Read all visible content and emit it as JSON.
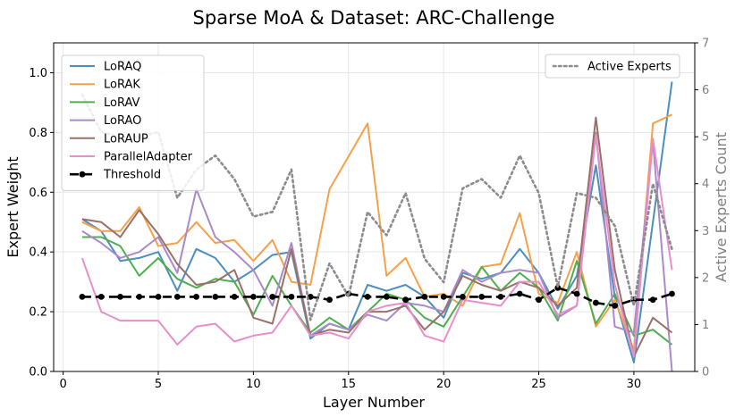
{
  "chart_data": {
    "type": "line",
    "title": "Sparse MoA & Dataset: ARC-Challenge",
    "xlabel": "Layer Number",
    "ylabel": "Expert Weight",
    "y2label": "Active Experts Count",
    "xlim": [
      -0.5,
      33.2
    ],
    "ylim": [
      0.0,
      1.1
    ],
    "y2lim": [
      0,
      7
    ],
    "xticks": [
      0,
      5,
      10,
      15,
      20,
      25,
      30
    ],
    "yticks": [
      0.0,
      0.2,
      0.4,
      0.6,
      0.8,
      1.0
    ],
    "y2ticks": [
      0,
      1,
      2,
      3,
      4,
      5,
      6,
      7
    ],
    "grid": true,
    "legend_main_position": "top-left",
    "legend_secondary_position": "top-right",
    "x": [
      1,
      2,
      3,
      4,
      5,
      6,
      7,
      8,
      9,
      10,
      11,
      12,
      13,
      14,
      15,
      16,
      17,
      18,
      19,
      20,
      21,
      22,
      23,
      24,
      25,
      26,
      27,
      28,
      29,
      30,
      31,
      32
    ],
    "series": [
      {
        "name": "LoRAQ",
        "color": "#4c8fbe",
        "style": "solid",
        "axis": "left",
        "values": [
          0.51,
          0.47,
          0.37,
          0.38,
          0.4,
          0.27,
          0.41,
          0.38,
          0.3,
          0.34,
          0.39,
          0.4,
          0.11,
          0.16,
          0.14,
          0.29,
          0.27,
          0.29,
          0.25,
          0.18,
          0.33,
          0.31,
          0.33,
          0.41,
          0.33,
          0.21,
          0.32,
          0.69,
          0.25,
          0.03,
          0.5,
          0.97
        ]
      },
      {
        "name": "LoRAK",
        "color": "#f5a04a",
        "style": "solid",
        "axis": "left",
        "values": [
          0.5,
          0.47,
          0.47,
          0.55,
          0.42,
          0.43,
          0.5,
          0.43,
          0.44,
          0.37,
          0.44,
          0.3,
          0.29,
          0.61,
          0.72,
          0.83,
          0.32,
          0.38,
          0.25,
          0.26,
          0.22,
          0.35,
          0.36,
          0.53,
          0.26,
          0.23,
          0.4,
          0.15,
          0.24,
          0.07,
          0.83,
          0.86
        ]
      },
      {
        "name": "LoRAV",
        "color": "#4fae4f",
        "style": "solid",
        "axis": "left",
        "values": [
          0.45,
          0.45,
          0.42,
          0.32,
          0.38,
          0.31,
          0.28,
          0.31,
          0.3,
          0.19,
          0.32,
          0.22,
          0.13,
          0.18,
          0.14,
          0.2,
          0.26,
          0.24,
          0.18,
          0.15,
          0.25,
          0.35,
          0.27,
          0.33,
          0.28,
          0.17,
          0.37,
          0.16,
          0.26,
          0.12,
          0.14,
          0.09
        ]
      },
      {
        "name": "LoRAO",
        "color": "#a98acb",
        "style": "solid",
        "axis": "left",
        "values": [
          0.47,
          0.43,
          0.38,
          0.4,
          0.45,
          0.33,
          0.61,
          0.45,
          0.4,
          0.34,
          0.22,
          0.43,
          0.12,
          0.16,
          0.14,
          0.19,
          0.17,
          0.23,
          0.22,
          0.2,
          0.34,
          0.3,
          0.33,
          0.34,
          0.33,
          0.18,
          0.22,
          0.8,
          0.15,
          0.13,
          0.77,
          0.0
        ]
      },
      {
        "name": "LoRAUP",
        "color": "#9a7068",
        "style": "solid",
        "axis": "left",
        "values": [
          0.51,
          0.5,
          0.45,
          0.54,
          0.46,
          0.36,
          0.29,
          0.3,
          0.34,
          0.18,
          0.16,
          0.41,
          0.12,
          0.14,
          0.13,
          0.2,
          0.2,
          0.22,
          0.14,
          0.2,
          0.32,
          0.29,
          0.27,
          0.3,
          0.28,
          0.22,
          0.28,
          0.85,
          0.34,
          0.05,
          0.18,
          0.13
        ]
      },
      {
        "name": "ParallelAdapter",
        "color": "#e88fcb",
        "style": "solid",
        "axis": "left",
        "values": [
          0.38,
          0.2,
          0.17,
          0.17,
          0.17,
          0.09,
          0.15,
          0.16,
          0.1,
          0.12,
          0.13,
          0.22,
          0.12,
          0.13,
          0.11,
          0.2,
          0.22,
          0.23,
          0.12,
          0.1,
          0.24,
          0.23,
          0.22,
          0.3,
          0.3,
          0.19,
          0.22,
          0.79,
          0.29,
          0.05,
          0.78,
          0.34
        ]
      },
      {
        "name": "Threshold",
        "color": "#000000",
        "style": "dashed-marker",
        "axis": "left",
        "values": [
          0.25,
          0.25,
          0.25,
          0.25,
          0.25,
          0.25,
          0.25,
          0.25,
          0.25,
          0.25,
          0.25,
          0.25,
          0.25,
          0.24,
          0.26,
          0.25,
          0.25,
          0.24,
          0.25,
          0.25,
          0.25,
          0.25,
          0.25,
          0.26,
          0.24,
          0.28,
          0.26,
          0.23,
          0.22,
          0.24,
          0.24,
          0.26
        ]
      },
      {
        "name": "Active Experts",
        "color": "#8c8c8c",
        "style": "dotted",
        "axis": "right",
        "values": [
          5.9,
          5.1,
          5.0,
          5.0,
          5.1,
          3.7,
          4.3,
          4.6,
          4.1,
          3.3,
          3.4,
          4.3,
          1.1,
          2.3,
          1.6,
          3.4,
          2.9,
          3.8,
          2.4,
          1.9,
          3.9,
          4.1,
          3.7,
          4.6,
          3.8,
          1.8,
          3.8,
          3.7,
          3.1,
          1.4,
          4.0,
          2.6
        ]
      }
    ]
  }
}
